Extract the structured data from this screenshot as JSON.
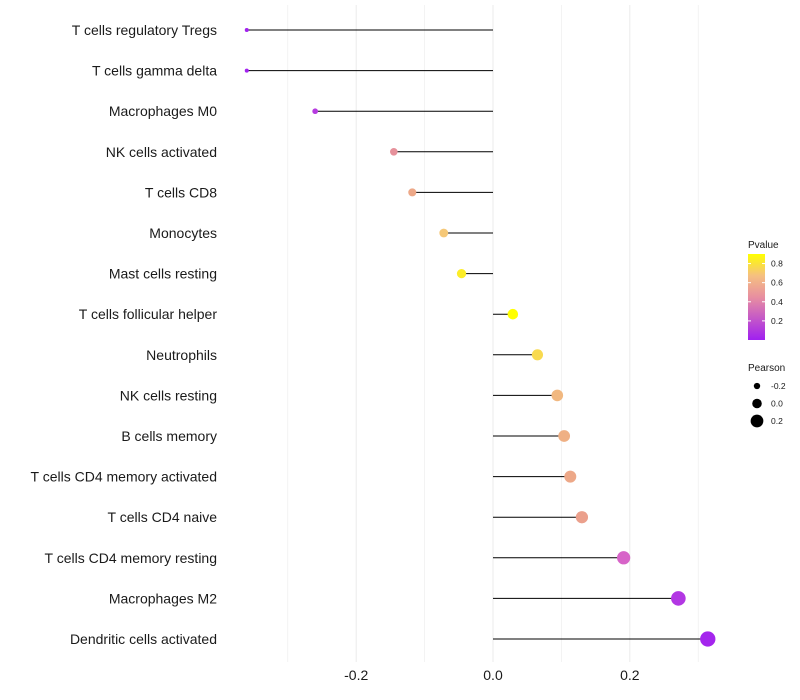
{
  "chart_data": {
    "type": "lollipop",
    "title": "",
    "xlabel": "",
    "ylabel": "",
    "xlim": [
      -0.37,
      0.33
    ],
    "x_ticks": [
      -0.2,
      0.0,
      0.2
    ],
    "x_tick_labels": [
      "-0.2",
      "0.0",
      "0.2"
    ],
    "categories": [
      "T cells regulatory  Tregs",
      "T cells gamma delta",
      "Macrophages M0",
      "NK cells activated",
      "T cells CD8",
      "Monocytes",
      "Mast cells resting",
      "T cells follicular helper",
      "Neutrophils",
      "NK cells resting",
      "B cells memory",
      "T cells CD4 memory activated",
      "T cells CD4 naive",
      "T cells CD4 memory resting",
      "Macrophages M2",
      "Dendritic cells activated"
    ],
    "pearson": [
      -0.36,
      -0.36,
      -0.26,
      -0.145,
      -0.118,
      -0.072,
      -0.046,
      0.029,
      0.065,
      0.094,
      0.104,
      0.113,
      0.13,
      0.191,
      0.271,
      0.314
    ],
    "pvalue": [
      0.01,
      0.01,
      0.12,
      0.45,
      0.55,
      0.75,
      0.85,
      0.9,
      0.8,
      0.65,
      0.6,
      0.55,
      0.5,
      0.3,
      0.1,
      0.02
    ],
    "legend": {
      "color": {
        "title": "Pvalue",
        "ticks": [
          0.8,
          0.6,
          0.4,
          0.2
        ],
        "tick_labels": [
          "0.8",
          "0.6",
          "0.4",
          "0.2"
        ],
        "range": [
          0.0,
          0.9
        ],
        "color_low": "#a020f0",
        "color_mid": "#f2b08a",
        "color_high": "#ffff00"
      },
      "size": {
        "title": "Pearson",
        "values": [
          -0.2,
          0.0,
          0.2
        ],
        "labels": [
          "-0.2",
          "0.0",
          "0.2"
        ]
      },
      "placement": "right"
    },
    "colors": {
      "stem": "#000000",
      "grid": "#ebebeb"
    }
  }
}
